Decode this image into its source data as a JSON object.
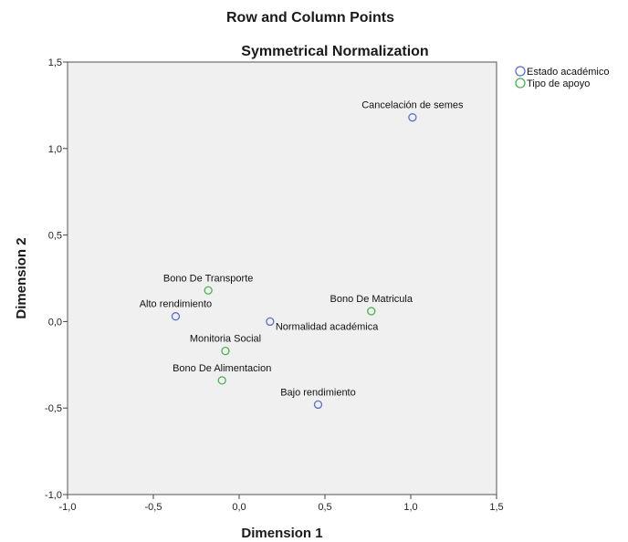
{
  "chart_data": {
    "type": "scatter",
    "title": "Row and Column Points",
    "subtitle": "Symmetrical Normalization",
    "xlabel": "Dimension 1",
    "ylabel": "Dimension 2",
    "xlim": [
      -1.0,
      1.5
    ],
    "ylim": [
      -1.0,
      1.5
    ],
    "xticks": [
      "-1,0",
      "-0,5",
      "0,0",
      "0,5",
      "1,0",
      "1,5"
    ],
    "yticks": [
      "-1,0",
      "-0,5",
      "0,0",
      "0,5",
      "1,0",
      "1,5"
    ],
    "grid": false,
    "legend_position": "top-right outside",
    "series": [
      {
        "name": "Estado académico",
        "color": "#5b6fcc",
        "points": [
          {
            "label": "Cancelación de semes",
            "x": 1.01,
            "y": 1.18
          },
          {
            "label": "Alto rendimiento",
            "x": -0.37,
            "y": 0.03
          },
          {
            "label": "Normalidad académica",
            "x": 0.18,
            "y": 0.0
          },
          {
            "label": "Bajo rendimiento",
            "x": 0.46,
            "y": -0.48
          }
        ]
      },
      {
        "name": "Tipo de apoyo",
        "color": "#4caf50",
        "points": [
          {
            "label": "Bono De Transporte",
            "x": -0.18,
            "y": 0.18
          },
          {
            "label": "Bono De Matricula",
            "x": 0.77,
            "y": 0.06
          },
          {
            "label": "Monitoria Social",
            "x": -0.08,
            "y": -0.17
          },
          {
            "label": "Bono De Alimentacion",
            "x": -0.1,
            "y": -0.34
          }
        ]
      }
    ]
  }
}
